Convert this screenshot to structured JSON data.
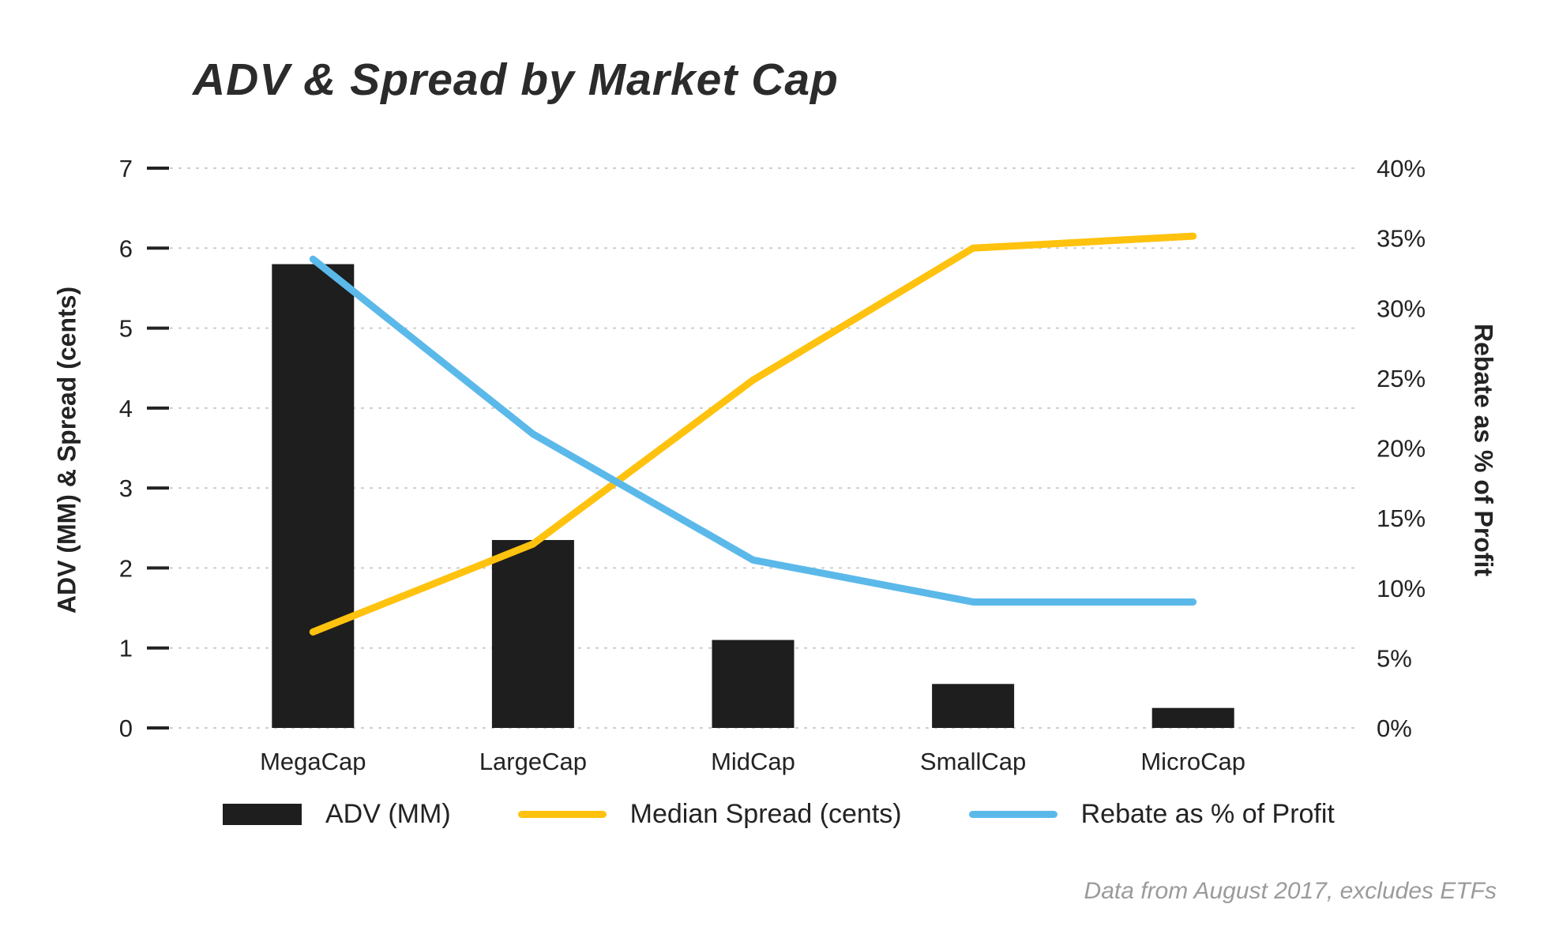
{
  "title": "ADV & Spread by Market Cap",
  "footnote": "Data from August 2017, excludes ETFs",
  "chart_data": {
    "type": "bar",
    "subtype": "combo-bar-line",
    "categories": [
      "MegaCap",
      "LargeCap",
      "MidCap",
      "SmallCap",
      "MicroCap"
    ],
    "series": [
      {
        "name": "ADV (MM)",
        "type": "bar",
        "axis": "left",
        "color": "#1e1e1e",
        "values": [
          5.8,
          2.35,
          1.1,
          0.55,
          0.25
        ]
      },
      {
        "name": "Median Spread (cents)",
        "type": "line",
        "axis": "left",
        "color": "#ffc20e",
        "values": [
          1.2,
          2.3,
          4.35,
          6.0,
          6.15
        ]
      },
      {
        "name": "Rebate as % of Profit",
        "type": "line",
        "axis": "right",
        "color": "#5bb9ea",
        "values": [
          33.5,
          21,
          12,
          9,
          9
        ]
      }
    ],
    "left_axis": {
      "label": "ADV (MM) & Spread (cents)",
      "min": 0,
      "max": 7,
      "ticks": [
        0,
        1,
        2,
        3,
        4,
        5,
        6,
        7
      ]
    },
    "right_axis": {
      "label": "Rebate as % of Profit",
      "min": 0,
      "max": 40,
      "tick_values": [
        0,
        5,
        10,
        15,
        20,
        25,
        30,
        35,
        40
      ],
      "ticks": [
        "0%",
        "5%",
        "10%",
        "15%",
        "20%",
        "25%",
        "30%",
        "35%",
        "40%"
      ]
    },
    "grid": "horizontal-dotted",
    "legend_position": "bottom"
  }
}
